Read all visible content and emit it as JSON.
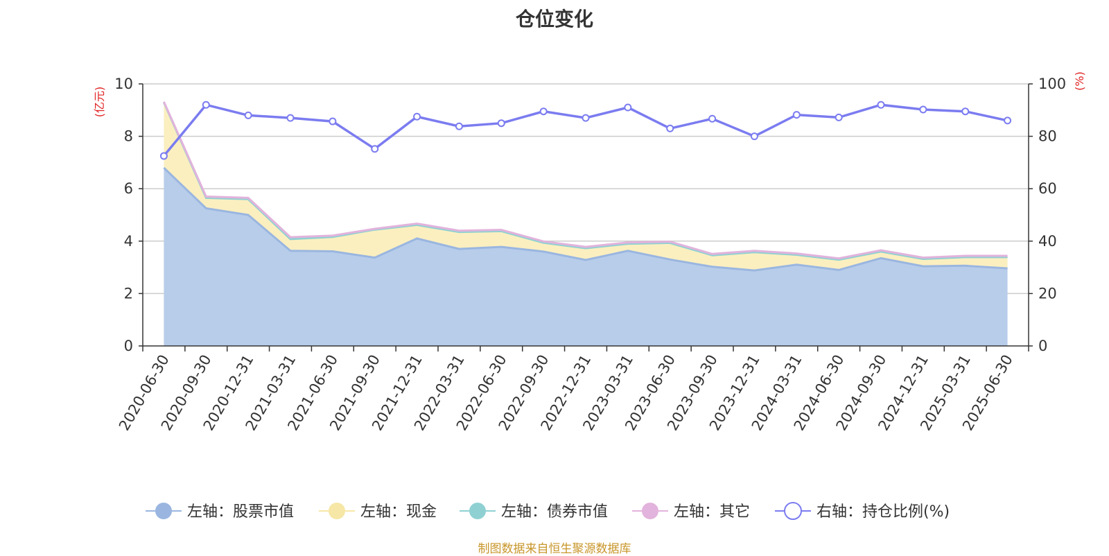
{
  "chart_data": {
    "type": "area",
    "title": "仓位变化",
    "x": [
      "2020-06-30",
      "2020-09-30",
      "2020-12-31",
      "2021-03-31",
      "2021-06-30",
      "2021-09-30",
      "2021-12-31",
      "2022-03-31",
      "2022-06-30",
      "2022-09-30",
      "2022-12-31",
      "2023-03-31",
      "2023-06-30",
      "2023-09-30",
      "2023-12-31",
      "2024-03-31",
      "2024-06-30",
      "2024-09-30",
      "2024-12-31",
      "2025-03-31",
      "2025-06-30"
    ],
    "left_axis": {
      "unit_label": "(亿元)",
      "ylim": [
        0,
        10
      ],
      "ticks": [
        "0",
        "2",
        "4",
        "6",
        "8",
        "10"
      ]
    },
    "right_axis": {
      "unit_label": "(%)",
      "ylim": [
        0,
        100
      ],
      "ticks": [
        "0",
        "20",
        "40",
        "60",
        "80",
        "100"
      ]
    },
    "series": [
      {
        "name": "左轴：股票市值",
        "axis": "left",
        "kind": "stacked-area",
        "color": "#9ab6e0",
        "fill": "#b8cdea",
        "values": [
          6.8,
          5.25,
          5.0,
          3.63,
          3.61,
          3.37,
          4.1,
          3.7,
          3.78,
          3.6,
          3.28,
          3.63,
          3.3,
          3.02,
          2.88,
          3.1,
          2.9,
          3.35,
          3.04,
          3.06,
          2.96
        ]
      },
      {
        "name": "左轴：现金",
        "axis": "left",
        "kind": "stacked-area",
        "color": "#f6e7a6",
        "fill": "#fbefc0",
        "values": [
          2.5,
          0.4,
          0.6,
          0.45,
          0.55,
          1.07,
          0.52,
          0.65,
          0.6,
          0.34,
          0.45,
          0.27,
          0.63,
          0.44,
          0.7,
          0.38,
          0.39,
          0.25,
          0.28,
          0.33,
          0.43
        ]
      },
      {
        "name": "左轴：债券市值",
        "axis": "left",
        "kind": "stacked-area",
        "color": "#8fd1d3",
        "fill": "#b5e2e3",
        "values": [
          0,
          0,
          0,
          0,
          0,
          0,
          0,
          0,
          0,
          0,
          0,
          0,
          0,
          0,
          0,
          0,
          0,
          0,
          0,
          0,
          0
        ]
      },
      {
        "name": "左轴：其它",
        "axis": "left",
        "kind": "stacked-area",
        "color": "#e2b3dc",
        "fill": "#efd2ea",
        "values": [
          0.02,
          0.05,
          0.05,
          0.07,
          0.05,
          0.03,
          0.05,
          0.05,
          0.05,
          0.05,
          0.05,
          0.05,
          0.05,
          0.05,
          0.05,
          0.05,
          0.05,
          0.05,
          0.05,
          0.05,
          0.05
        ]
      },
      {
        "name": "右轴：持仓比例(%)",
        "axis": "right",
        "kind": "line",
        "color": "#7b7cf0",
        "values": [
          72.5,
          92,
          88,
          87,
          85.7,
          75.2,
          87.5,
          83.8,
          85,
          89.5,
          87,
          91,
          83,
          86.7,
          80,
          88.2,
          87.2,
          92,
          90.2,
          89.5,
          86
        ]
      }
    ],
    "legend_position": "bottom",
    "grid": true,
    "source_note": "制图数据来自恒生聚源数据库"
  }
}
